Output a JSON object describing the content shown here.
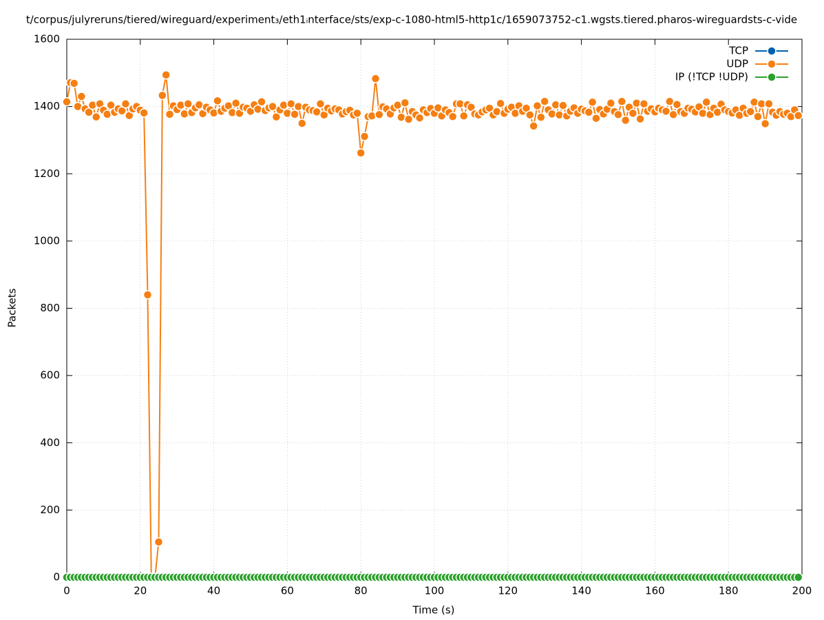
{
  "chart_data": {
    "type": "line",
    "title": "t/corpus/julyreruns/tiered/wireguard/experiment₃/eth1ᵢnterface/sts/exp-c-1080-html5-http1c/1659073752-c1.wgsts.tiered.pharos-wireguardsts-c-vide",
    "x_label": "Time (s)",
    "y_label": "Packets",
    "x": [
      0,
      1,
      2,
      3,
      4,
      5,
      6,
      7,
      8,
      9,
      10,
      11,
      12,
      13,
      14,
      15,
      16,
      17,
      18,
      19,
      20,
      21,
      22,
      23,
      24,
      25,
      26,
      27,
      28,
      29,
      30,
      31,
      32,
      33,
      34,
      35,
      36,
      37,
      38,
      39,
      40,
      41,
      42,
      43,
      44,
      45,
      46,
      47,
      48,
      49,
      50,
      51,
      52,
      53,
      54,
      55,
      56,
      57,
      58,
      59,
      60,
      61,
      62,
      63,
      64,
      65,
      66,
      67,
      68,
      69,
      70,
      71,
      72,
      73,
      74,
      75,
      76,
      77,
      78,
      79,
      80,
      81,
      82,
      83,
      84,
      85,
      86,
      87,
      88,
      89,
      90,
      91,
      92,
      93,
      94,
      95,
      96,
      97,
      98,
      99,
      100,
      101,
      102,
      103,
      104,
      105,
      106,
      107,
      108,
      109,
      110,
      111,
      112,
      113,
      114,
      115,
      116,
      117,
      118,
      119,
      120,
      121,
      122,
      123,
      124,
      125,
      126,
      127,
      128,
      129,
      130,
      131,
      132,
      133,
      134,
      135,
      136,
      137,
      138,
      139,
      140,
      141,
      142,
      143,
      144,
      145,
      146,
      147,
      148,
      149,
      150,
      151,
      152,
      153,
      154,
      155,
      156,
      157,
      158,
      159,
      160,
      161,
      162,
      163,
      164,
      165,
      166,
      167,
      168,
      169,
      170,
      171,
      172,
      173,
      174,
      175,
      176,
      177,
      178,
      179,
      180,
      181,
      182,
      183,
      184,
      185,
      186,
      187,
      188,
      189,
      190,
      191,
      192,
      193,
      194,
      195,
      196,
      197,
      198,
      199
    ],
    "series": [
      {
        "name": "TCP",
        "color": "#0060ad",
        "values": [
          0,
          0,
          0,
          0,
          0,
          0,
          0,
          0,
          0,
          0,
          0,
          0,
          0,
          0,
          0,
          0,
          0,
          0,
          0,
          0,
          0,
          0,
          0,
          0,
          0,
          0,
          0,
          0,
          0,
          0,
          0,
          0,
          0,
          0,
          0,
          0,
          0,
          0,
          0,
          0,
          0,
          0,
          0,
          0,
          0,
          0,
          0,
          0,
          0,
          0,
          0,
          0,
          0,
          0,
          0,
          0,
          0,
          0,
          0,
          0,
          0,
          0,
          0,
          0,
          0,
          0,
          0,
          0,
          0,
          0,
          0,
          0,
          0,
          0,
          0,
          0,
          0,
          0,
          0,
          0,
          0,
          0,
          0,
          0,
          0,
          0,
          0,
          0,
          0,
          0,
          0,
          0,
          0,
          0,
          0,
          0,
          0,
          0,
          0,
          0,
          0,
          0,
          0,
          0,
          0,
          0,
          0,
          0,
          0,
          0,
          0,
          0,
          0,
          0,
          0,
          0,
          0,
          0,
          0,
          0,
          0,
          0,
          0,
          0,
          0,
          0,
          0,
          0,
          0,
          0,
          0,
          0,
          0,
          0,
          0,
          0,
          0,
          0,
          0,
          0,
          0,
          0,
          0,
          0,
          0,
          0,
          0,
          0,
          0,
          0,
          0,
          0,
          0,
          0,
          0,
          0,
          0,
          0,
          0,
          0,
          0,
          0,
          0,
          0,
          0,
          0,
          0,
          0,
          0,
          0,
          0,
          0,
          0,
          0,
          0,
          0,
          0,
          0,
          0,
          0,
          0,
          0,
          0,
          0,
          0,
          0,
          0,
          0,
          0,
          0,
          0,
          0,
          0,
          0,
          0,
          0,
          0,
          0,
          0,
          0
        ]
      },
      {
        "name": "UDP",
        "color": "#f57f12",
        "values": [
          1414,
          1471,
          1469,
          1400,
          1430,
          1393,
          1383,
          1404,
          1369,
          1408,
          1389,
          1377,
          1404,
          1383,
          1393,
          1387,
          1408,
          1373,
          1393,
          1400,
          1389,
          1381,
          840,
          0,
          0,
          105,
          1433,
          1494,
          1377,
          1402,
          1391,
          1404,
          1378,
          1408,
          1382,
          1396,
          1405,
          1379,
          1398,
          1390,
          1381,
          1417,
          1386,
          1395,
          1402,
          1382,
          1410,
          1380,
          1398,
          1395,
          1386,
          1405,
          1392,
          1414,
          1388,
          1396,
          1400,
          1369,
          1390,
          1404,
          1380,
          1408,
          1377,
          1400,
          1350,
          1398,
          1390,
          1388,
          1384,
          1408,
          1375,
          1395,
          1387,
          1393,
          1390,
          1378,
          1385,
          1389,
          1375,
          1380,
          1262,
          1311,
          1370,
          1372,
          1483,
          1376,
          1399,
          1393,
          1378,
          1396,
          1404,
          1368,
          1411,
          1362,
          1385,
          1375,
          1366,
          1390,
          1382,
          1394,
          1380,
          1396,
          1372,
          1390,
          1382,
          1370,
          1408,
          1408,
          1372,
          1405,
          1398,
          1378,
          1375,
          1384,
          1390,
          1395,
          1375,
          1385,
          1409,
          1380,
          1392,
          1398,
          1380,
          1402,
          1386,
          1395,
          1375,
          1342,
          1402,
          1368,
          1415,
          1390,
          1378,
          1405,
          1375,
          1403,
          1372,
          1386,
          1396,
          1380,
          1392,
          1387,
          1383,
          1413,
          1365,
          1391,
          1378,
          1392,
          1410,
          1385,
          1376,
          1415,
          1359,
          1398,
          1380,
          1410,
          1363,
          1408,
          1386,
          1393,
          1384,
          1395,
          1390,
          1386,
          1415,
          1376,
          1406,
          1385,
          1380,
          1395,
          1392,
          1384,
          1399,
          1380,
          1413,
          1376,
          1395,
          1383,
          1407,
          1390,
          1385,
          1381,
          1390,
          1374,
          1395,
          1380,
          1385,
          1413,
          1370,
          1408,
          1349,
          1408,
          1383,
          1374,
          1385,
          1377,
          1380,
          1370,
          1390,
          1373
        ]
      },
      {
        "name": "IP (!TCP  !UDP)",
        "color": "#2ca02c",
        "values": [
          0,
          0,
          0,
          0,
          0,
          0,
          0,
          0,
          0,
          0,
          0,
          0,
          0,
          0,
          0,
          0,
          0,
          0,
          0,
          0,
          0,
          0,
          0,
          0,
          0,
          0,
          0,
          0,
          0,
          0,
          0,
          0,
          0,
          0,
          0,
          0,
          0,
          0,
          0,
          0,
          0,
          0,
          0,
          0,
          0,
          0,
          0,
          0,
          0,
          0,
          0,
          0,
          0,
          0,
          0,
          0,
          0,
          0,
          0,
          0,
          0,
          0,
          0,
          0,
          0,
          0,
          0,
          0,
          0,
          0,
          0,
          0,
          0,
          0,
          0,
          0,
          0,
          0,
          0,
          0,
          0,
          0,
          0,
          0,
          0,
          0,
          0,
          0,
          0,
          0,
          0,
          0,
          0,
          0,
          0,
          0,
          0,
          0,
          0,
          0,
          0,
          0,
          0,
          0,
          0,
          0,
          0,
          0,
          0,
          0,
          0,
          0,
          0,
          0,
          0,
          0,
          0,
          0,
          0,
          0,
          0,
          0,
          0,
          0,
          0,
          0,
          0,
          0,
          0,
          0,
          0,
          0,
          0,
          0,
          0,
          0,
          0,
          0,
          0,
          0,
          0,
          0,
          0,
          0,
          0,
          0,
          0,
          0,
          0,
          0,
          0,
          0,
          0,
          0,
          0,
          0,
          0,
          0,
          0,
          0,
          0,
          0,
          0,
          0,
          0,
          0,
          0,
          0,
          0,
          0,
          0,
          0,
          0,
          0,
          0,
          0,
          0,
          0,
          0,
          0,
          0,
          0,
          0,
          0,
          0,
          0,
          0,
          0,
          0,
          0,
          0,
          0,
          0,
          0,
          0,
          0,
          0,
          0,
          0,
          0
        ]
      }
    ],
    "xlim": [
      0,
      200
    ],
    "xticks": [
      0,
      20,
      40,
      60,
      80,
      100,
      120,
      140,
      160,
      180,
      200
    ],
    "ylim": [
      0,
      1600
    ],
    "yticks": [
      0,
      200,
      400,
      600,
      800,
      1000,
      1200,
      1400,
      1600
    ],
    "grid": true,
    "legend": "top-right"
  }
}
